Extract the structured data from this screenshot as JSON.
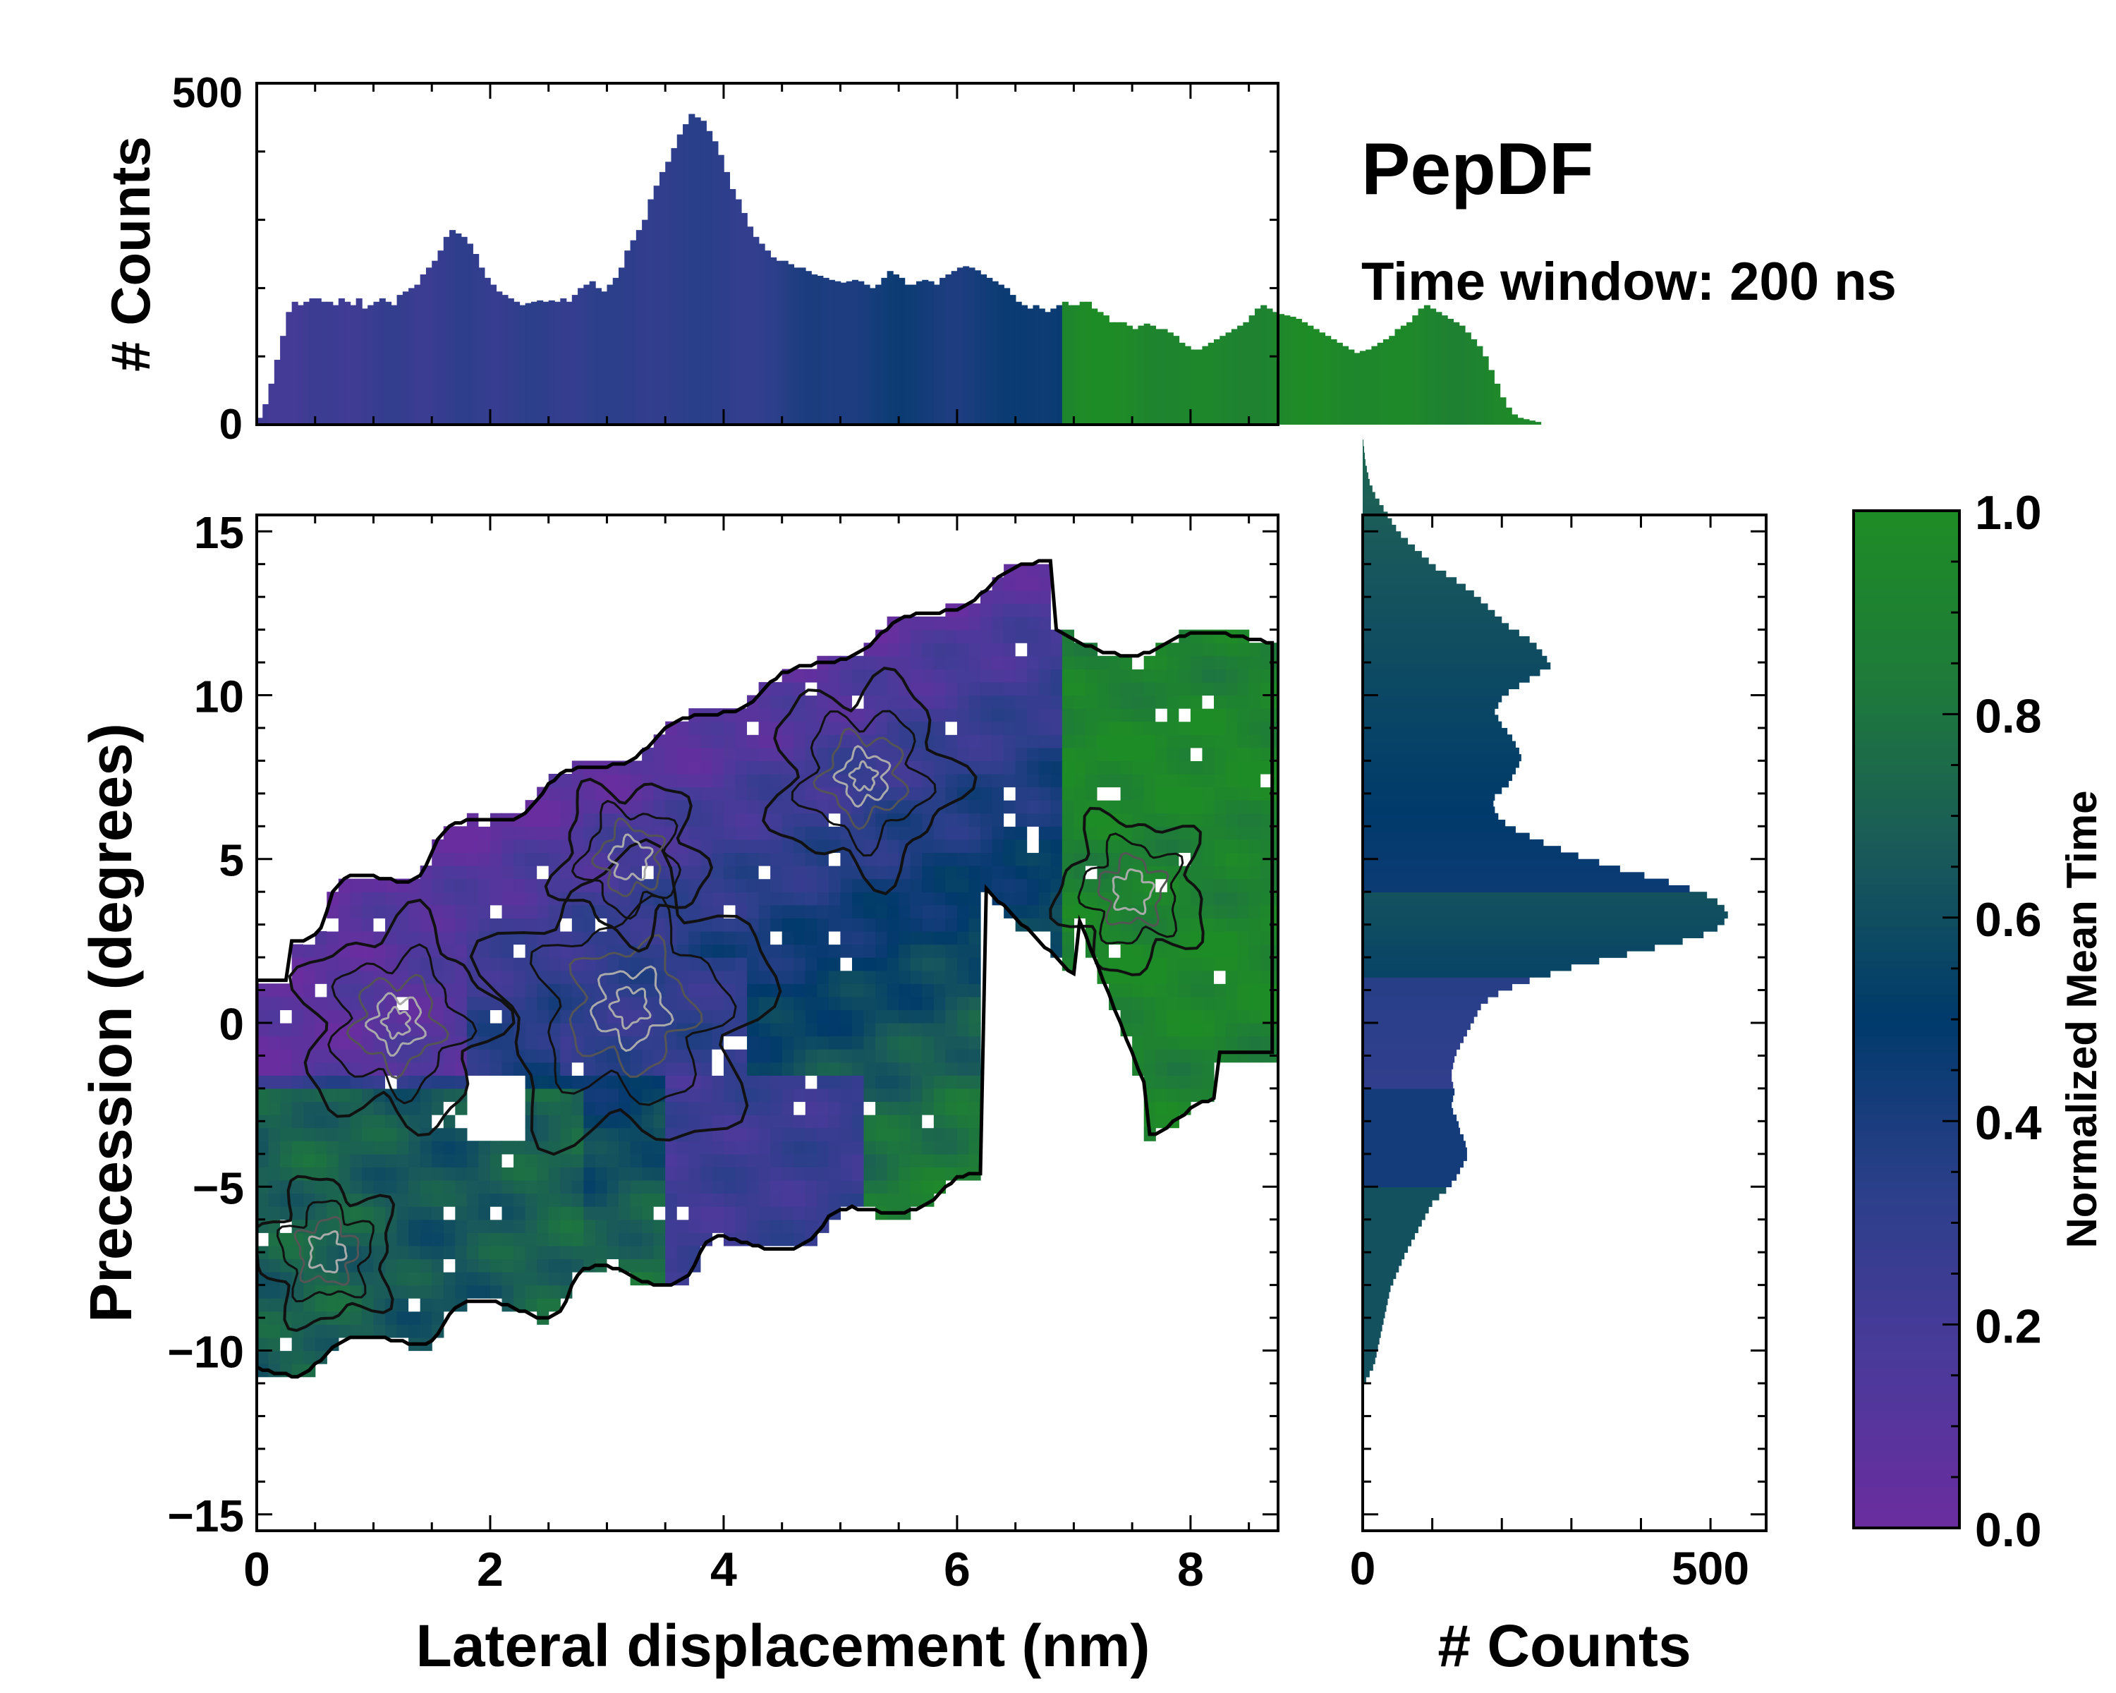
{
  "colors": {
    "background": "#ffffff",
    "axis": "#000000",
    "contour_outer": "#111111",
    "contour_mid": "#555555",
    "contour_inner": "#aaaaaa",
    "cmap": [
      "#6a2d9f",
      "#4a3a9a",
      "#2b3f8a",
      "#003a6b",
      "#1a5a5a",
      "#1e7a3a",
      "#1e8c26"
    ]
  },
  "chart_data": [
    {
      "id": "joint",
      "type": "heatmap",
      "title": "PepDF",
      "subtitle": "Time window: 200 ns",
      "xlabel": "Lateral displacement (nm)",
      "ylabel": "Precession (degrees)",
      "xlim": [
        0,
        8.75
      ],
      "ylim": [
        -15.5,
        15.5
      ],
      "xticks": [
        0,
        2,
        4,
        6,
        8
      ],
      "xtick_labels": [
        "0",
        "2",
        "4",
        "6",
        "8"
      ],
      "yticks": [
        -15,
        -10,
        -5,
        0,
        5,
        10,
        15
      ],
      "ytick_labels": [
        "−15",
        "−10",
        "−5",
        "0",
        "5",
        "10",
        "15"
      ],
      "value_label": "Normalized Mean Time",
      "density_peaks": [
        {
          "x": 3.2,
          "y": 0.5,
          "w": 1.0
        },
        {
          "x": 1.2,
          "y": 0.0,
          "w": 0.6
        },
        {
          "x": 5.2,
          "y": 7.5,
          "w": 0.55
        },
        {
          "x": 3.2,
          "y": 5.0,
          "w": 0.35
        },
        {
          "x": 7.5,
          "y": 4.0,
          "w": 0.35
        },
        {
          "x": 0.6,
          "y": -7.0,
          "w": 0.3
        }
      ]
    },
    {
      "id": "marginal_x",
      "type": "bar",
      "ylabel": "# Counts",
      "ylim": [
        0,
        500
      ],
      "yticks": [
        0,
        500
      ],
      "ytick_labels": [
        "0",
        "500"
      ],
      "bin_start": 0,
      "bin_width": 0.05,
      "values": [
        10,
        30,
        60,
        95,
        130,
        165,
        180,
        175,
        180,
        185,
        185,
        180,
        180,
        175,
        185,
        180,
        175,
        185,
        170,
        175,
        180,
        185,
        180,
        175,
        190,
        195,
        200,
        205,
        220,
        230,
        240,
        255,
        275,
        285,
        280,
        275,
        265,
        250,
        230,
        215,
        205,
        195,
        190,
        185,
        180,
        175,
        178,
        180,
        182,
        180,
        182,
        180,
        185,
        180,
        190,
        200,
        205,
        210,
        200,
        195,
        205,
        215,
        230,
        255,
        270,
        285,
        300,
        330,
        350,
        370,
        385,
        405,
        425,
        440,
        455,
        450,
        445,
        430,
        415,
        395,
        370,
        345,
        330,
        310,
        290,
        275,
        265,
        255,
        245,
        240,
        240,
        235,
        230,
        230,
        225,
        220,
        218,
        215,
        212,
        210,
        208,
        210,
        212,
        210,
        205,
        200,
        205,
        215,
        225,
        220,
        215,
        205,
        205,
        210,
        212,
        210,
        205,
        215,
        220,
        225,
        230,
        232,
        230,
        226,
        220,
        215,
        210,
        205,
        200,
        190,
        180,
        175,
        170,
        175,
        170,
        165,
        170,
        175,
        180,
        175,
        175,
        180,
        180,
        170,
        165,
        160,
        150,
        150,
        150,
        145,
        140,
        145,
        148,
        145,
        140,
        140,
        135,
        130,
        120,
        115,
        110,
        110,
        115,
        120,
        125,
        130,
        135,
        140,
        145,
        150,
        160,
        170,
        175,
        170,
        165,
        162,
        160,
        158,
        155,
        150,
        145,
        140,
        135,
        130,
        125,
        120,
        115,
        110,
        105,
        108,
        110,
        115,
        120,
        125,
        130,
        140,
        145,
        150,
        160,
        170,
        175,
        170,
        165,
        160,
        155,
        150,
        145,
        135,
        125,
        115,
        100,
        80,
        60,
        40,
        25,
        15,
        10,
        8,
        6,
        4
      ]
    },
    {
      "id": "marginal_y",
      "type": "bar",
      "orientation": "horizontal",
      "xlabel": "# Counts",
      "xlim": [
        0,
        580
      ],
      "xticks": [
        0,
        500
      ],
      "xtick_labels": [
        "0",
        "500"
      ],
      "bin_start": -11.0,
      "bin_width": 0.2,
      "values": [
        5,
        10,
        15,
        18,
        20,
        22,
        24,
        26,
        28,
        30,
        32,
        34,
        36,
        38,
        40,
        44,
        48,
        52,
        56,
        60,
        65,
        70,
        75,
        80,
        85,
        90,
        95,
        100,
        110,
        120,
        128,
        135,
        140,
        145,
        150,
        150,
        148,
        145,
        140,
        138,
        135,
        130,
        128,
        130,
        132,
        130,
        128,
        128,
        130,
        132,
        135,
        140,
        145,
        150,
        155,
        160,
        165,
        170,
        180,
        195,
        215,
        240,
        270,
        300,
        340,
        380,
        420,
        460,
        490,
        510,
        520,
        525,
        520,
        510,
        495,
        470,
        440,
        405,
        370,
        340,
        310,
        285,
        260,
        240,
        220,
        205,
        195,
        190,
        188,
        190,
        200,
        210,
        215,
        220,
        225,
        228,
        225,
        220,
        215,
        208,
        200,
        195,
        190,
        195,
        200,
        210,
        225,
        240,
        255,
        270,
        265,
        258,
        250,
        240,
        225,
        210,
        200,
        190,
        180,
        170,
        160,
        148,
        135,
        120,
        105,
        95,
        85,
        75,
        65,
        55,
        48,
        42,
        36,
        30,
        24,
        18,
        14,
        10,
        8,
        6,
        4,
        3,
        2,
        1
      ]
    },
    {
      "id": "colorbar",
      "type": "colorbar",
      "label": "Normalized Mean Time",
      "range": [
        0.0,
        1.0
      ],
      "ticks": [
        0.0,
        0.2,
        0.4,
        0.6,
        0.8,
        1.0
      ],
      "tick_labels": [
        "0.0",
        "0.2",
        "0.4",
        "0.6",
        "0.8",
        "1.0"
      ]
    }
  ]
}
